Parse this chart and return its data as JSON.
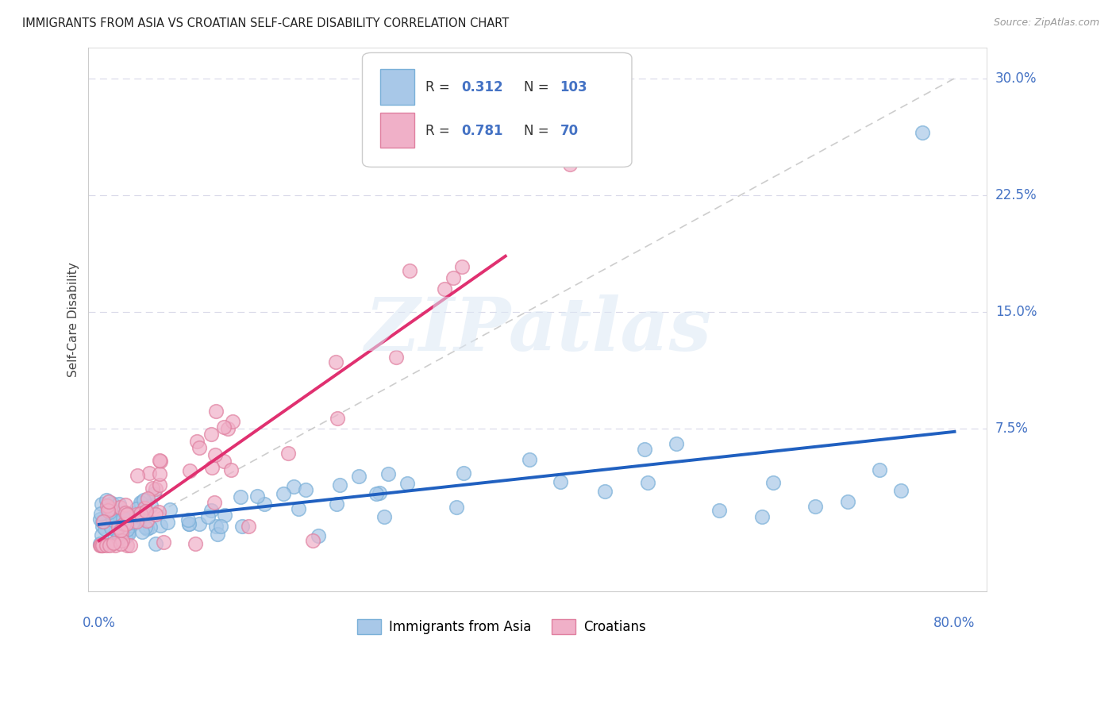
{
  "title": "IMMIGRANTS FROM ASIA VS CROATIAN SELF-CARE DISABILITY CORRELATION CHART",
  "source": "Source: ZipAtlas.com",
  "ylabel": "Self-Care Disability",
  "watermark": "ZIPatlas",
  "color_asia": "#a8c8e8",
  "color_asia_edge": "#7ab0d8",
  "color_croatian": "#f0b0c8",
  "color_croatian_edge": "#e080a0",
  "color_asia_line": "#2060c0",
  "color_croatian_line": "#e03070",
  "color_diagonal": "#c8c8c8",
  "axis_label_color": "#4472c4",
  "title_color": "#222222",
  "source_color": "#999999",
  "grid_color": "#d8d8e8"
}
